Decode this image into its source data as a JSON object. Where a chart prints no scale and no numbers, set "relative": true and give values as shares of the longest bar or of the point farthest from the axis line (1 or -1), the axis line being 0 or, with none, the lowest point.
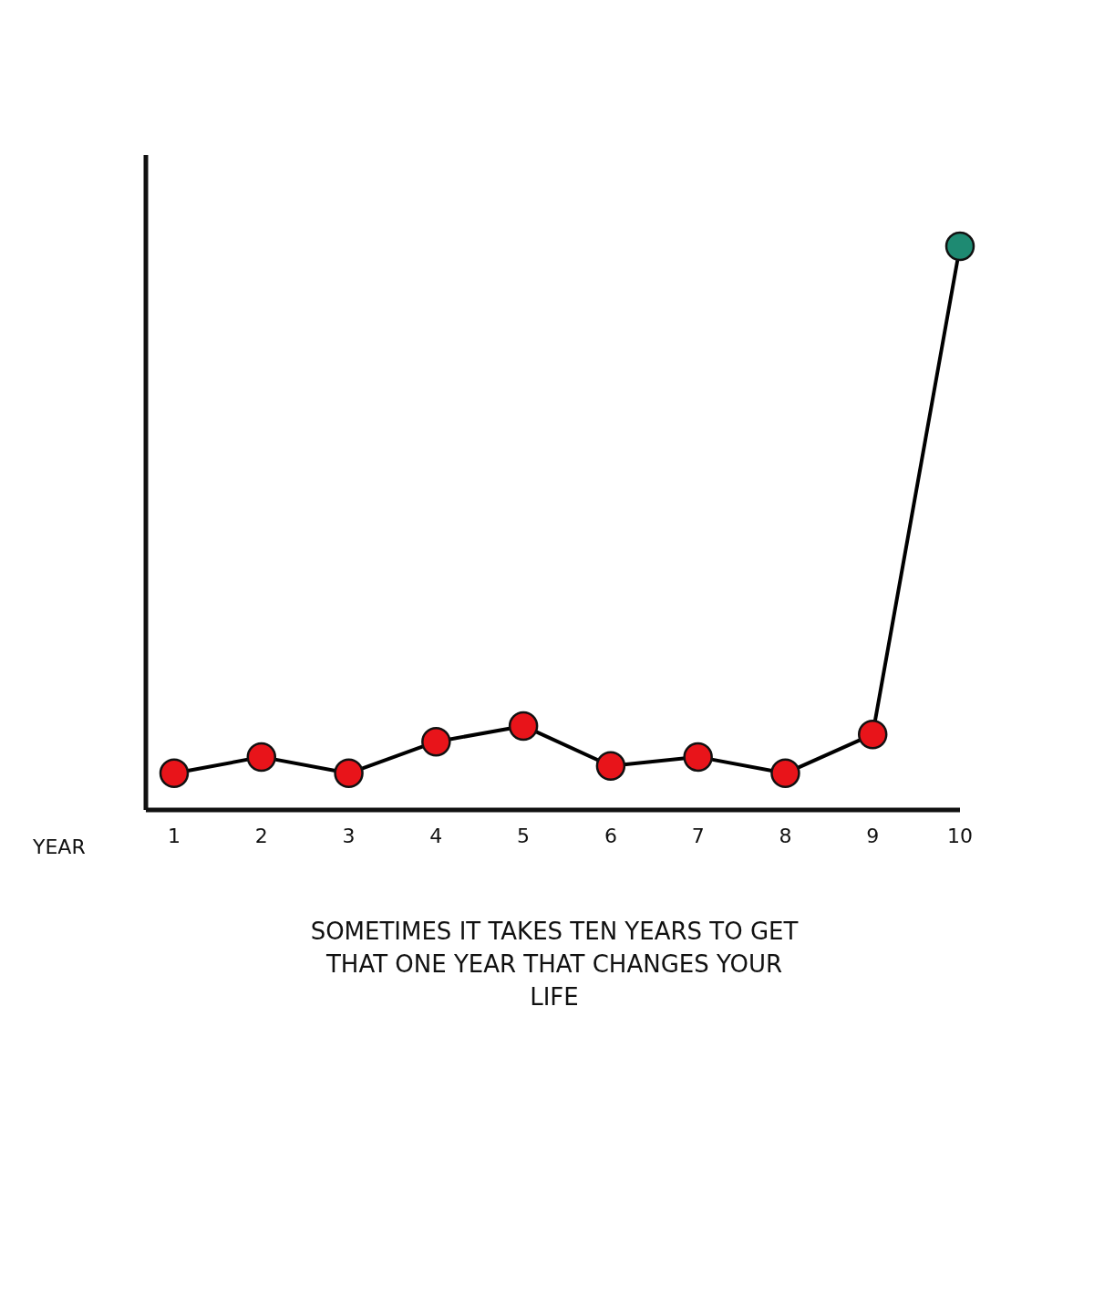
{
  "chart_data": {
    "type": "line",
    "relative": true,
    "xlabel": "YEAR",
    "categories": [
      "1",
      "2",
      "3",
      "4",
      "5",
      "6",
      "7",
      "8",
      "9",
      "10"
    ],
    "series": [
      {
        "color": "#000000",
        "colors": [
          "#e8141a",
          "#e8141a",
          "#e8141a",
          "#e8141a",
          "#e8141a",
          "#e8141a",
          "#e8141a",
          "#e8141a",
          "#e8141a",
          "#1e8a72"
        ],
        "values": [
          0.065,
          0.094,
          0.065,
          0.121,
          0.149,
          0.078,
          0.094,
          0.065,
          0.134,
          1
        ]
      }
    ],
    "marker": "circle",
    "line_style": "solid",
    "annotations": [
      "SOMETIMES IT TAKES TEN YEARS TO GET THAT ONE YEAR THAT CHANGES YOUR LIFE"
    ]
  }
}
